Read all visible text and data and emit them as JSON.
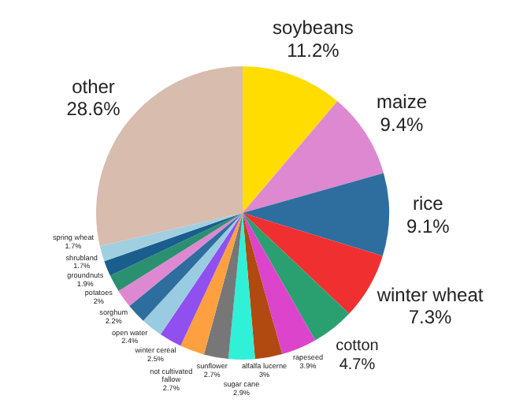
{
  "chart_data": {
    "type": "pie",
    "categories": [
      "soybeans",
      "maize",
      "rice",
      "winter wheat",
      "cotton",
      "rapeseed",
      "alfalfa lucerne",
      "sugar cane",
      "sunflower",
      "not cultivated\nfallow",
      "winter cereal",
      "open water",
      "sorghum",
      "potatoes",
      "groundnuts",
      "shrubland",
      "spring wheat",
      "other"
    ],
    "values": [
      11.2,
      9.4,
      9.1,
      7.3,
      4.7,
      3.9,
      3,
      2.9,
      2.7,
      2.7,
      2.5,
      2.4,
      2.2,
      2,
      1.9,
      1.7,
      1.7,
      28.6
    ],
    "value_labels": [
      "11.2%",
      "9.4%",
      "9.1%",
      "7.3%",
      "4.7%",
      "3.9%",
      "3%",
      "2.9%",
      "2.7%",
      "2.7%",
      "2.5%",
      "2.4%",
      "2.2%",
      "2%",
      "1.9%",
      "1.7%",
      "1.7%",
      "28.6%"
    ],
    "colors": [
      "#ffdd00",
      "#dd88d0",
      "#2e6e9e",
      "#f03030",
      "#2aa070",
      "#dd44cc",
      "#b04a10",
      "#30f0d8",
      "#777777",
      "#ffa040",
      "#9050f0",
      "#99cce0",
      "#2e6e9e",
      "#dd88d0",
      "#2a9070",
      "#1a5e8e",
      "#a0d0e0",
      "#d8bcae"
    ],
    "legend": false
  }
}
